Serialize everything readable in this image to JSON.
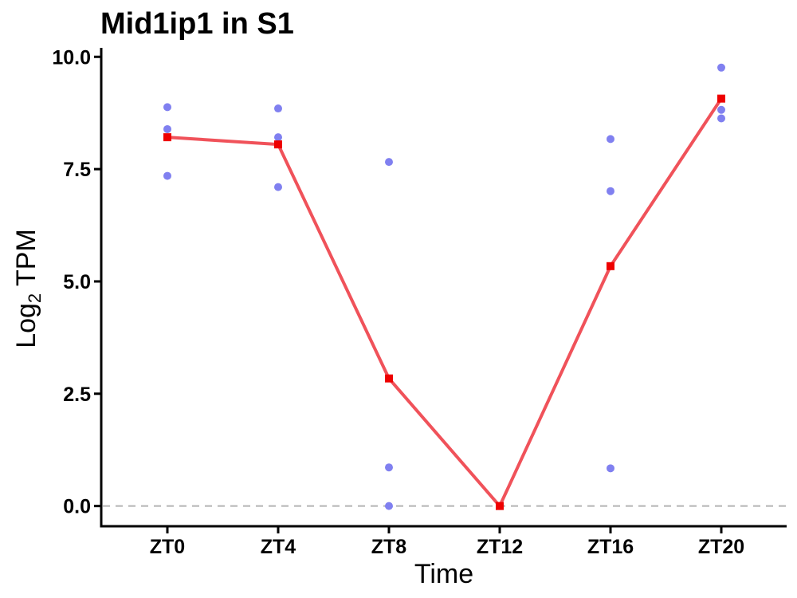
{
  "chart_data": {
    "type": "line",
    "title": "Mid1ip1 in S1",
    "xlabel": "Time",
    "ylabel": {
      "prefix": "Log",
      "subscript": "2",
      "suffix": " TPM"
    },
    "categories": [
      "ZT0",
      "ZT4",
      "ZT8",
      "ZT12",
      "ZT16",
      "ZT20"
    ],
    "ylim": [
      -0.45,
      10.2
    ],
    "yticks": [
      0.0,
      2.5,
      5.0,
      7.5,
      10.0
    ],
    "ytick_labels": [
      "0.0",
      "2.5",
      "5.0",
      "7.5",
      "10.0"
    ],
    "reference_line": {
      "y": 0,
      "style": "dashed",
      "color": "#b3b3b3"
    },
    "series": [
      {
        "kind": "points",
        "color": "#8080f0",
        "points": [
          {
            "x": "ZT0",
            "y": 8.88
          },
          {
            "x": "ZT0",
            "y": 8.39
          },
          {
            "x": "ZT0",
            "y": 7.35
          },
          {
            "x": "ZT4",
            "y": 8.85
          },
          {
            "x": "ZT4",
            "y": 8.21
          },
          {
            "x": "ZT4",
            "y": 7.1
          },
          {
            "x": "ZT8",
            "y": 7.66
          },
          {
            "x": "ZT8",
            "y": 0.86
          },
          {
            "x": "ZT8",
            "y": 0.0
          },
          {
            "x": "ZT12",
            "y": 0.0
          },
          {
            "x": "ZT16",
            "y": 8.17
          },
          {
            "x": "ZT16",
            "y": 7.01
          },
          {
            "x": "ZT16",
            "y": 0.84
          },
          {
            "x": "ZT20",
            "y": 9.76
          },
          {
            "x": "ZT20",
            "y": 8.82
          },
          {
            "x": "ZT20",
            "y": 8.63
          }
        ]
      },
      {
        "kind": "line",
        "color": "#f0525a",
        "marker_color": "#ee0000",
        "values": [
          8.21,
          8.05,
          2.84,
          0.0,
          5.34,
          9.07
        ]
      }
    ]
  }
}
